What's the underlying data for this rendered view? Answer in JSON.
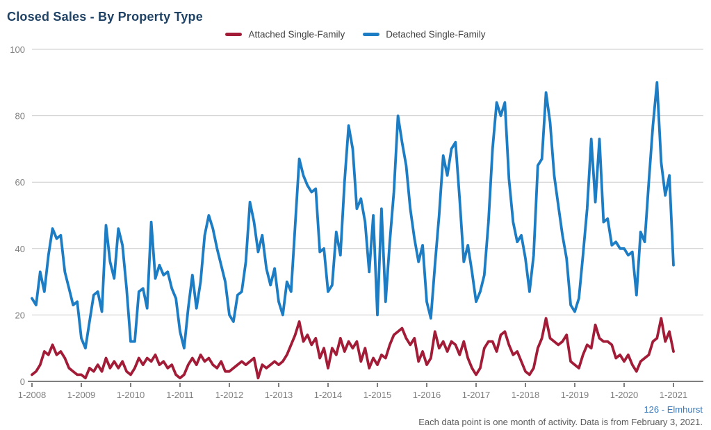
{
  "title": "Closed Sales - By Property Type",
  "legend": [
    {
      "id": "attached",
      "label": "Attached Single-Family",
      "color": "#a31c37"
    },
    {
      "id": "detached",
      "label": "Detached Single-Family",
      "color": "#1d7dc4"
    }
  ],
  "footer": {
    "location_label": "126 - Elmhurst",
    "note": "Each data point is one month of activity. Data is from February 3, 2021."
  },
  "chart_data": {
    "type": "line",
    "title": "Closed Sales - By Property Type",
    "interval": "monthly",
    "start_month": "1-2008",
    "end_month": "1-2021",
    "x_tick_labels": [
      "1-2008",
      "1-2009",
      "1-2010",
      "1-2011",
      "1-2012",
      "1-2013",
      "1-2014",
      "1-2015",
      "1-2016",
      "1-2017",
      "1-2018",
      "1-2019",
      "1-2020",
      "1-2021"
    ],
    "ylim": [
      0,
      100
    ],
    "yticks": [
      0,
      20,
      40,
      60,
      80,
      100
    ],
    "grid": "horizontal",
    "legend_position": "top-center",
    "series": [
      {
        "id": "attached",
        "name": "Attached Single-Family",
        "color": "#a31c37",
        "values": [
          2,
          3,
          5,
          9,
          8,
          11,
          8,
          9,
          7,
          4,
          3,
          2,
          2,
          1,
          4,
          3,
          5,
          3,
          7,
          4,
          6,
          4,
          6,
          3,
          2,
          4,
          7,
          5,
          7,
          6,
          8,
          5,
          6,
          4,
          5,
          2,
          1,
          2,
          5,
          7,
          5,
          8,
          6,
          7,
          5,
          4,
          6,
          3,
          3,
          4,
          5,
          6,
          5,
          6,
          7,
          1,
          5,
          4,
          5,
          6,
          5,
          6,
          8,
          11,
          14,
          18,
          12,
          14,
          11,
          13,
          7,
          10,
          4,
          10,
          8,
          13,
          9,
          12,
          10,
          12,
          6,
          10,
          4,
          7,
          5,
          8,
          7,
          11,
          14,
          15,
          16,
          13,
          11,
          13,
          6,
          9,
          5,
          7,
          15,
          10,
          12,
          9,
          12,
          11,
          8,
          12,
          7,
          4,
          2,
          4,
          10,
          12,
          12,
          9,
          14,
          15,
          11,
          8,
          9,
          6,
          3,
          2,
          4,
          10,
          13,
          19,
          13,
          12,
          11,
          12,
          14,
          6,
          5,
          4,
          8,
          11,
          10,
          17,
          13,
          12,
          12,
          11,
          7,
          8,
          6,
          8,
          5,
          3,
          6,
          7,
          8,
          12,
          13,
          19,
          12,
          15,
          9
        ]
      },
      {
        "id": "detached",
        "name": "Detached Single-Family",
        "color": "#1d7dc4",
        "values": [
          25,
          23,
          33,
          27,
          38,
          46,
          43,
          44,
          33,
          28,
          23,
          24,
          13,
          10,
          18,
          26,
          27,
          21,
          47,
          36,
          31,
          46,
          41,
          28,
          12,
          12,
          27,
          28,
          22,
          48,
          31,
          35,
          32,
          33,
          28,
          25,
          15,
          10,
          22,
          32,
          22,
          30,
          44,
          50,
          46,
          40,
          35,
          30,
          20,
          18,
          26,
          27,
          36,
          54,
          48,
          39,
          44,
          34,
          29,
          34,
          24,
          20,
          30,
          27,
          47,
          67,
          62,
          59,
          57,
          58,
          39,
          40,
          27,
          29,
          45,
          38,
          60,
          77,
          70,
          52,
          55,
          48,
          33,
          50,
          20,
          52,
          24,
          42,
          57,
          80,
          72,
          65,
          52,
          43,
          36,
          41,
          24,
          19,
          35,
          50,
          68,
          62,
          70,
          72,
          55,
          36,
          41,
          33,
          24,
          27,
          32,
          48,
          70,
          84,
          80,
          84,
          61,
          48,
          42,
          44,
          37,
          27,
          38,
          65,
          67,
          87,
          78,
          62,
          53,
          44,
          37,
          23,
          21,
          25,
          38,
          52,
          73,
          54,
          73,
          48,
          49,
          41,
          42,
          40,
          40,
          38,
          39,
          26,
          45,
          42,
          60,
          77,
          90,
          66,
          56,
          62,
          35
        ]
      }
    ]
  }
}
